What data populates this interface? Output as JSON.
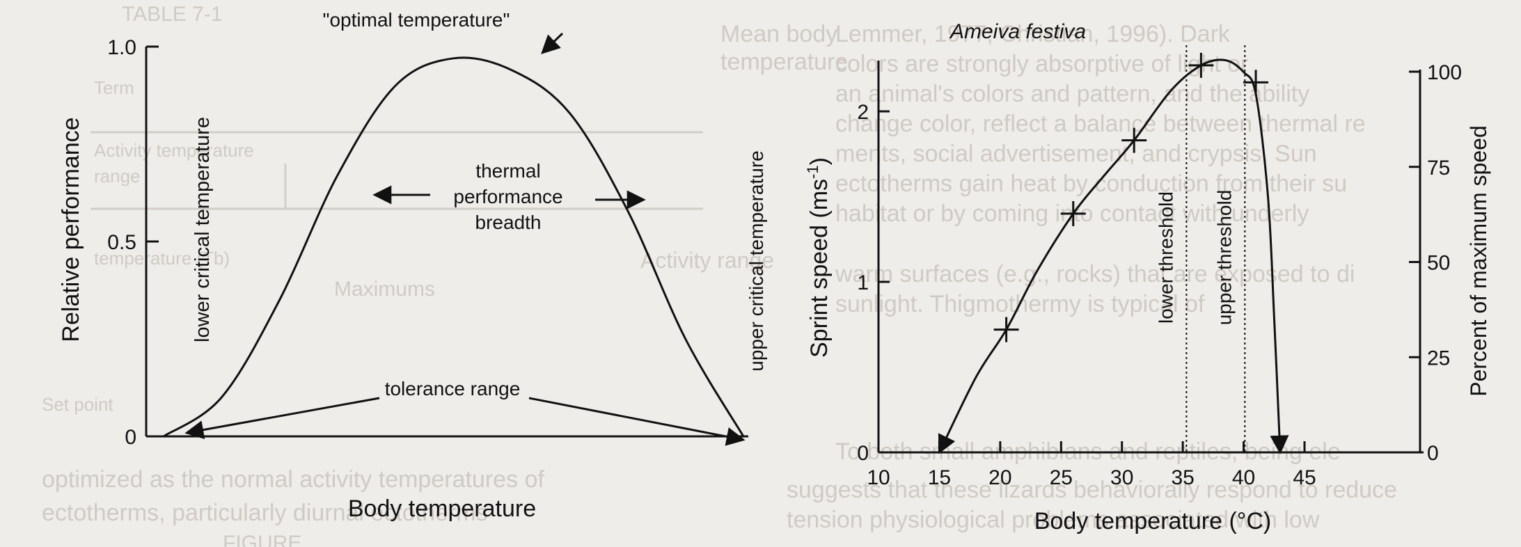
{
  "chart_data": [
    {
      "type": "line",
      "title": "",
      "xlabel": "Body temperature",
      "ylabel": "Relative performance",
      "ylim": [
        0,
        1.0
      ],
      "yticks": [
        "1.0",
        "0.5",
        "0"
      ],
      "ytick_values": [
        1.0,
        0.5,
        0
      ],
      "grid": false,
      "series": [
        {
          "x": [
            0.0,
            0.1,
            0.2,
            0.3,
            0.4,
            0.5,
            0.6,
            0.7,
            0.8,
            0.9,
            1.0
          ],
          "values": [
            0.0,
            0.1,
            0.35,
            0.67,
            0.9,
            0.97,
            0.94,
            0.83,
            0.58,
            0.25,
            0.0
          ]
        }
      ],
      "annotations": {
        "optimal": "\"optimal temperature\"",
        "lower_critical": "lower critical temperature",
        "upper_critical": "upper critical temperature",
        "breadth": [
          "thermal",
          "performance",
          "breadth"
        ],
        "tolerance": "tolerance range"
      }
    },
    {
      "type": "line",
      "title": "Ameiva festiva",
      "xlabel": "Body temperature (°C)",
      "ylabel": "Sprint speed (ms-1)",
      "ylabel_parts": [
        "Sprint speed (ms",
        "-1",
        ")"
      ],
      "y2label": "Percent of maximum speed",
      "xlim": [
        10,
        48
      ],
      "ylim": [
        0,
        2.4
      ],
      "xticks": [
        10,
        15,
        20,
        25,
        30,
        35,
        40,
        45
      ],
      "yticks": [
        0,
        1,
        2
      ],
      "y2lim": [
        0,
        100
      ],
      "y2ticks": [
        0,
        25,
        50,
        75,
        100
      ],
      "grid": false,
      "points": {
        "x": [
          20.5,
          26,
          31,
          36.5,
          41
        ],
        "y": [
          0.72,
          1.4,
          1.83,
          2.27,
          2.17
        ]
      },
      "curve": {
        "x": [
          15,
          18,
          20.5,
          23,
          26,
          28.5,
          31,
          34,
          36.5,
          38.5,
          40,
          41,
          42,
          42.5,
          43
        ],
        "y": [
          0.0,
          0.44,
          0.72,
          1.06,
          1.4,
          1.62,
          1.83,
          2.12,
          2.27,
          2.3,
          2.23,
          2.1,
          1.5,
          0.8,
          0.0
        ]
      },
      "thresholds": [
        {
          "x": 35.3,
          "label": "lower threshold"
        },
        {
          "x": 40.1,
          "label": "upper threshold"
        }
      ]
    }
  ],
  "background_text": {
    "table_header": "TABLE 7-1",
    "left_col": [
      "Term",
      "Activity temperature",
      "range",
      "temperature (Tb)",
      "Set point"
    ],
    "mid": [
      "Mean body",
      "temperature"
    ],
    "activity": "Activity range",
    "maximums": "Maximums",
    "body_lines": [
      "Lemmer, 1977; Christian, 1996). Dark",
      "colors are strongly absorptive of light or",
      "an animal's colors and pattern, and the ability",
      "change color, reflect a balance between thermal re",
      "ments, social advertisement, and crypsis. Sun",
      "ectotherms gain heat by conduction from their su",
      "habitat or by coming into contact with underly",
      "warm surfaces (e.g., rocks) that are exposed to di",
      "sunlight. Thigmothermy is typical of",
      "To both small amphibians and reptiles, being ele",
      "suggests that these lizards behaviorally respond to reduce",
      "tension physiological problems associated with low"
    ],
    "bottom_lines": [
      "optimized as the normal activity temperatures of",
      "ectotherms, particularly diurnal ectotherms"
    ],
    "figure": "FIGURE"
  }
}
